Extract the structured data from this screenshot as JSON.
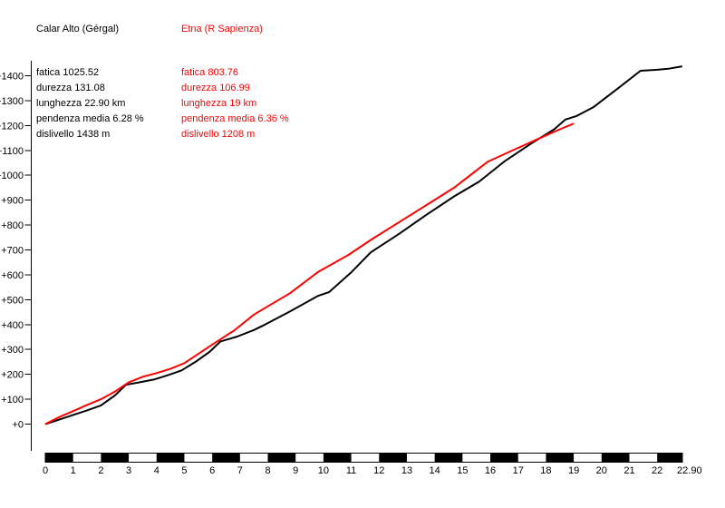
{
  "profiles": [
    {
      "title": "Calar Alto (Gérgal)",
      "color": "#000000",
      "stats": [
        "fatica 1025.52",
        "durezza 131.08",
        "lunghezza 22.90 km",
        "pendenza media 6.28 %",
        "dislivello 1438 m"
      ]
    },
    {
      "title": "Etna (R Sapienza)",
      "color": "#ff0000",
      "stats": [
        "fatica 803.76",
        "durezza 106.99",
        "lunghezza 19 km",
        "pendenza media 6.36 %",
        "dislivello 1208 m"
      ]
    }
  ],
  "chart_data": {
    "type": "line",
    "title": "",
    "x_unit": "km",
    "y_unit": "m",
    "x_range": [
      0,
      22.9
    ],
    "y_range": [
      0,
      1400
    ],
    "grid": false,
    "legend_position": "text-blocks-top-left",
    "y_tick_labels": [
      "+0",
      "+100",
      "+200",
      "+300",
      "+400",
      "+500",
      "+600",
      "+700",
      "+800",
      "+900",
      "+1000",
      "+1100",
      "+1200",
      "+1300",
      "+1400"
    ],
    "x_tick_labels": [
      "0",
      "1",
      "2",
      "3",
      "4",
      "5",
      "6",
      "7",
      "8",
      "9",
      "10",
      "11",
      "12",
      "13",
      "14",
      "15",
      "16",
      "17",
      "18",
      "19",
      "20",
      "21",
      "22",
      "22.90"
    ],
    "scalebar": {
      "start_km": 0,
      "end_km": 22.9,
      "segment_km": 1,
      "first_segment_color": "#000000",
      "alternate_color": "#ffffff"
    },
    "series": [
      {
        "name": "Calar Alto (Gérgal)",
        "color": "#000000",
        "points": [
          [
            0,
            0
          ],
          [
            0.5,
            18
          ],
          [
            1,
            37
          ],
          [
            1.5,
            55
          ],
          [
            2,
            75
          ],
          [
            2.5,
            115
          ],
          [
            2.9,
            158
          ],
          [
            3.4,
            168
          ],
          [
            3.9,
            179
          ],
          [
            4.4,
            196
          ],
          [
            4.9,
            216
          ],
          [
            5.4,
            250
          ],
          [
            5.9,
            290
          ],
          [
            6.3,
            332
          ],
          [
            6.9,
            352
          ],
          [
            7.5,
            378
          ],
          [
            7.9,
            400
          ],
          [
            8.8,
            453
          ],
          [
            9.8,
            515
          ],
          [
            10.2,
            530
          ],
          [
            11,
            610
          ],
          [
            11.7,
            690
          ],
          [
            12.7,
            763
          ],
          [
            13.7,
            841
          ],
          [
            14.7,
            915
          ],
          [
            15.6,
            975
          ],
          [
            16.5,
            1055
          ],
          [
            17.5,
            1130
          ],
          [
            18.3,
            1185
          ],
          [
            18.7,
            1224
          ],
          [
            19.1,
            1238
          ],
          [
            19.7,
            1273
          ],
          [
            20.6,
            1350
          ],
          [
            21.4,
            1420
          ],
          [
            22,
            1424
          ],
          [
            22.4,
            1428
          ],
          [
            22.9,
            1438
          ]
        ]
      },
      {
        "name": "Etna (R Sapienza)",
        "color": "#ff0000",
        "points": [
          [
            0,
            0
          ],
          [
            0.5,
            28
          ],
          [
            1,
            52
          ],
          [
            1.5,
            77
          ],
          [
            2,
            100
          ],
          [
            2.5,
            130
          ],
          [
            3,
            168
          ],
          [
            3.5,
            190
          ],
          [
            4,
            205
          ],
          [
            4.5,
            222
          ],
          [
            5,
            245
          ],
          [
            5.9,
            312
          ],
          [
            6.8,
            377
          ],
          [
            7.5,
            440
          ],
          [
            7.8,
            460
          ],
          [
            8.8,
            526
          ],
          [
            9.8,
            611
          ],
          [
            10.9,
            680
          ],
          [
            11.7,
            740
          ],
          [
            12.7,
            810
          ],
          [
            13.7,
            880
          ],
          [
            14.7,
            950
          ],
          [
            15.9,
            1054
          ],
          [
            17,
            1110
          ],
          [
            18,
            1160
          ],
          [
            18.5,
            1185
          ],
          [
            19,
            1208
          ]
        ]
      }
    ]
  }
}
